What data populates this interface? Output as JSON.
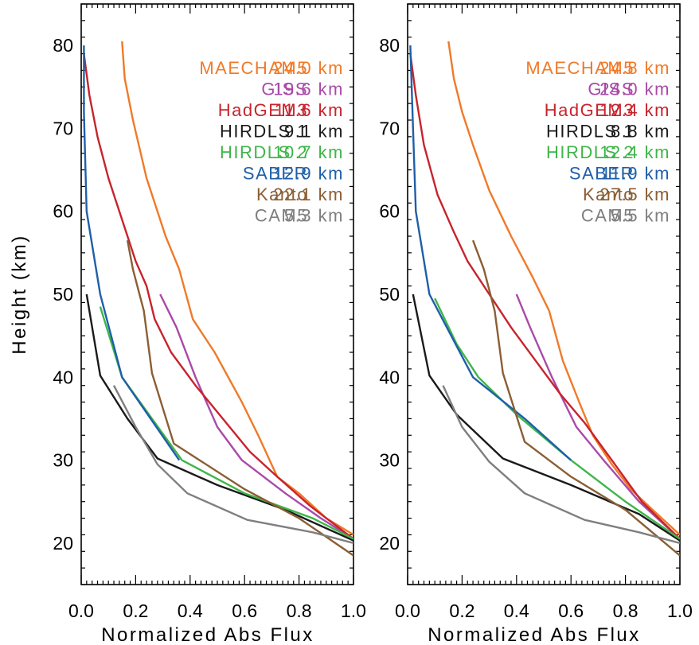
{
  "chart_data": {
    "type": "line",
    "ylabel": "Height (km)",
    "xlabel": "Normalized Abs Flux",
    "xlim": [
      0,
      1
    ],
    "ylim": [
      15,
      85
    ],
    "x_ticks": [
      "0.0",
      "0.2",
      "0.4",
      "0.6",
      "0.8",
      "1.0"
    ],
    "y_ticks": [
      "20",
      "30",
      "40",
      "50",
      "60",
      "70",
      "80"
    ],
    "colors": {
      "MAECHAM5": "#f07a28",
      "GISS": "#a94aa8",
      "HadGEM3": "#c8232c",
      "HIRDLS 1": "#1a1a1a",
      "HIRDLS 2": "#3fb54a",
      "SABER": "#1f5fa8",
      "Kanto": "#8b5e34",
      "CAM5": "#7f7f7f"
    },
    "panels": [
      {
        "legend": [
          {
            "name": "MAECHAM5",
            "value": "24.0 km"
          },
          {
            "name": "GISS",
            "value": "19.6 km"
          },
          {
            "name": "HadGEM3",
            "value": "11.6 km"
          },
          {
            "name": "HIRDLS 1",
            "value": "9.1 km"
          },
          {
            "name": "HIRDLS 2",
            "value": "10.7 km"
          },
          {
            "name": "SABER",
            "value": "12.9 km"
          },
          {
            "name": "Kanto",
            "value": "22.1 km"
          },
          {
            "name": "CAM5",
            "value": "5.3 km"
          }
        ],
        "series": [
          {
            "name": "MAECHAM5",
            "points": [
              [
                0.15,
                80.5
              ],
              [
                0.16,
                76
              ],
              [
                0.19,
                71
              ],
              [
                0.24,
                64
              ],
              [
                0.31,
                57
              ],
              [
                0.36,
                53
              ],
              [
                0.41,
                47
              ],
              [
                0.49,
                43
              ],
              [
                0.59,
                37
              ],
              [
                0.65,
                33
              ],
              [
                0.72,
                28
              ],
              [
                0.8,
                26
              ],
              [
                0.9,
                23
              ],
              [
                1.0,
                21
              ]
            ]
          },
          {
            "name": "GISS",
            "points": [
              [
                0.29,
                50
              ],
              [
                0.35,
                46
              ],
              [
                0.42,
                40
              ],
              [
                0.5,
                34
              ],
              [
                0.59,
                30
              ],
              [
                0.75,
                26
              ],
              [
                0.88,
                23
              ],
              [
                1.0,
                20.5
              ]
            ]
          },
          {
            "name": "HadGEM3",
            "points": [
              [
                0.01,
                79
              ],
              [
                0.03,
                74
              ],
              [
                0.06,
                69
              ],
              [
                0.1,
                64
              ],
              [
                0.15,
                59
              ],
              [
                0.2,
                54
              ],
              [
                0.24,
                51
              ],
              [
                0.27,
                47
              ],
              [
                0.33,
                43
              ],
              [
                0.42,
                39
              ],
              [
                0.52,
                35
              ],
              [
                0.62,
                31
              ],
              [
                0.72,
                28
              ],
              [
                0.84,
                24.5
              ],
              [
                1.0,
                20.5
              ]
            ]
          },
          {
            "name": "HIRDLS 1",
            "points": [
              [
                0.02,
                50
              ],
              [
                0.07,
                40.2
              ],
              [
                0.17,
                35
              ],
              [
                0.28,
                30.2
              ],
              [
                0.5,
                27
              ],
              [
                0.75,
                24
              ],
              [
                1.0,
                20.3
              ]
            ]
          },
          {
            "name": "HIRDLS 2",
            "points": [
              [
                0.07,
                48.5
              ],
              [
                0.15,
                40
              ],
              [
                0.26,
                35
              ],
              [
                0.37,
                30
              ],
              [
                0.6,
                26
              ],
              [
                0.85,
                23
              ],
              [
                1.0,
                20.5
              ]
            ]
          },
          {
            "name": "SABER",
            "points": [
              [
                0.01,
                80
              ],
              [
                0.01,
                72
              ],
              [
                0.02,
                60
              ],
              [
                0.07,
                50
              ],
              [
                0.15,
                40
              ],
              [
                0.36,
                30
              ]
            ]
          },
          {
            "name": "Kanto",
            "points": [
              [
                0.17,
                56.5
              ],
              [
                0.19,
                53
              ],
              [
                0.23,
                48
              ],
              [
                0.26,
                40.5
              ],
              [
                0.34,
                32
              ],
              [
                0.6,
                26.5
              ],
              [
                0.8,
                23
              ],
              [
                1.0,
                18.5
              ]
            ]
          },
          {
            "name": "CAM5",
            "points": [
              [
                0.12,
                39
              ],
              [
                0.2,
                34
              ],
              [
                0.28,
                29.5
              ],
              [
                0.39,
                26
              ],
              [
                0.61,
                22.8
              ],
              [
                0.85,
                21.3
              ],
              [
                1.0,
                20
              ]
            ]
          }
        ]
      },
      {
        "legend": [
          {
            "name": "MAECHAM5",
            "value": "24.8 km"
          },
          {
            "name": "GISS",
            "value": "24.0 km"
          },
          {
            "name": "HadGEM3",
            "value": "12.4 km"
          },
          {
            "name": "HIRDLS 1",
            "value": "8.8 km"
          },
          {
            "name": "HIRDLS 2",
            "value": "12.4 km"
          },
          {
            "name": "SABER",
            "value": "11.9 km"
          },
          {
            "name": "Kanto",
            "value": "27.5 km"
          },
          {
            "name": "CAM5",
            "value": "5.5 km"
          }
        ],
        "series": [
          {
            "name": "MAECHAM5",
            "points": [
              [
                0.15,
                80.5
              ],
              [
                0.17,
                76
              ],
              [
                0.2,
                72
              ],
              [
                0.24,
                68
              ],
              [
                0.3,
                62.5
              ],
              [
                0.38,
                57
              ],
              [
                0.46,
                52
              ],
              [
                0.52,
                48
              ],
              [
                0.57,
                42
              ],
              [
                0.63,
                37
              ],
              [
                0.68,
                33
              ],
              [
                0.75,
                29.5
              ],
              [
                0.82,
                26.5
              ],
              [
                0.9,
                24
              ],
              [
                1.0,
                21
              ]
            ]
          },
          {
            "name": "GISS",
            "points": [
              [
                0.4,
                50
              ],
              [
                0.45,
                46
              ],
              [
                0.53,
                40
              ],
              [
                0.62,
                34
              ],
              [
                0.72,
                30
              ],
              [
                0.85,
                25
              ],
              [
                1.0,
                20.5
              ]
            ]
          },
          {
            "name": "HadGEM3",
            "points": [
              [
                0.01,
                79
              ],
              [
                0.03,
                74
              ],
              [
                0.06,
                68
              ],
              [
                0.11,
                62
              ],
              [
                0.17,
                57.5
              ],
              [
                0.22,
                54
              ],
              [
                0.3,
                50
              ],
              [
                0.38,
                46
              ],
              [
                0.47,
                42
              ],
              [
                0.56,
                38
              ],
              [
                0.65,
                34.5
              ],
              [
                0.75,
                30
              ],
              [
                0.86,
                25
              ],
              [
                1.0,
                20.5
              ]
            ]
          },
          {
            "name": "HIRDLS 1",
            "points": [
              [
                0.02,
                50
              ],
              [
                0.08,
                40.2
              ],
              [
                0.18,
                35.5
              ],
              [
                0.35,
                30.2
              ],
              [
                0.6,
                27
              ],
              [
                0.85,
                23.5
              ],
              [
                1.0,
                20.3
              ]
            ]
          },
          {
            "name": "HIRDLS 2",
            "points": [
              [
                0.1,
                49.5
              ],
              [
                0.18,
                44
              ],
              [
                0.26,
                40
              ],
              [
                0.4,
                35.5
              ],
              [
                0.6,
                30
              ],
              [
                0.8,
                25
              ],
              [
                1.0,
                20.5
              ]
            ]
          },
          {
            "name": "SABER",
            "points": [
              [
                0.01,
                80
              ],
              [
                0.02,
                70
              ],
              [
                0.03,
                60
              ],
              [
                0.08,
                50
              ],
              [
                0.24,
                40
              ],
              [
                0.43,
                35
              ],
              [
                0.6,
                30
              ]
            ]
          },
          {
            "name": "Kanto",
            "points": [
              [
                0.24,
                56.5
              ],
              [
                0.28,
                53
              ],
              [
                0.32,
                48
              ],
              [
                0.35,
                40.5
              ],
              [
                0.43,
                32.2
              ],
              [
                0.6,
                28
              ],
              [
                0.8,
                24
              ],
              [
                1.0,
                18.5
              ]
            ]
          },
          {
            "name": "CAM5",
            "points": [
              [
                0.13,
                39
              ],
              [
                0.2,
                34
              ],
              [
                0.3,
                29.8
              ],
              [
                0.43,
                26
              ],
              [
                0.65,
                22.8
              ],
              [
                0.85,
                21.3
              ],
              [
                1.0,
                20
              ]
            ]
          }
        ]
      }
    ]
  }
}
